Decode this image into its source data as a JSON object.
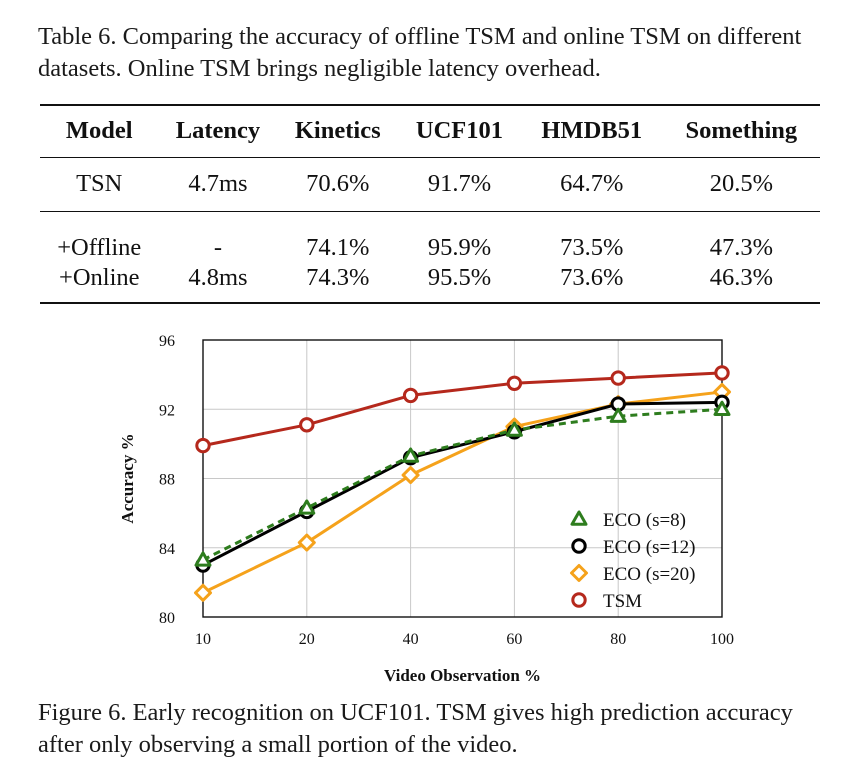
{
  "table_caption": "Table 6. Comparing the accuracy of offline TSM and online TSM on different datasets. Online TSM brings negligible latency overhead.",
  "table": {
    "columns": [
      "Model",
      "Latency",
      "Kinetics",
      "UCF101",
      "HMDB51",
      "Something"
    ],
    "rows": [
      [
        "TSN",
        "4.7ms",
        "70.6%",
        "91.7%",
        "64.7%",
        "20.5%"
      ],
      [
        "+Offline",
        "-",
        "74.1%",
        "95.9%",
        "73.5%",
        "47.3%"
      ],
      [
        "+Online",
        "4.8ms",
        "74.3%",
        "95.5%",
        "73.6%",
        "46.3%"
      ]
    ]
  },
  "chart_data": {
    "type": "line",
    "title": "",
    "xlabel": "Video Observation %",
    "ylabel": "Accuracy %",
    "x": [
      10,
      20,
      40,
      60,
      80,
      100
    ],
    "x_tick_labels": [
      "10",
      "20",
      "40",
      "60",
      "80",
      "100"
    ],
    "ylim": [
      80,
      96
    ],
    "y_ticks": [
      80,
      84,
      88,
      92,
      96
    ],
    "y_tick_labels": [
      "80",
      "84",
      "88",
      "92",
      "96"
    ],
    "grid": true,
    "legend_position": "bottom-right",
    "series": [
      {
        "name": "ECO (s=8)",
        "color": "#2e7d1e",
        "marker": "triangle",
        "line": "dashed",
        "values": [
          83.3,
          86.3,
          89.3,
          90.8,
          91.6,
          92.0
        ]
      },
      {
        "name": "ECO (s=12)",
        "color": "#000000",
        "marker": "circle",
        "line": "solid",
        "values": [
          83.0,
          86.1,
          89.2,
          90.7,
          92.3,
          92.4
        ]
      },
      {
        "name": "ECO (s=20)",
        "color": "#f5a21b",
        "marker": "diamond",
        "line": "solid",
        "values": [
          81.4,
          84.3,
          88.2,
          91.0,
          92.3,
          93.0
        ]
      },
      {
        "name": "TSM",
        "color": "#b5281c",
        "marker": "circle",
        "line": "solid",
        "values": [
          89.9,
          91.1,
          92.8,
          93.5,
          93.8,
          94.1
        ]
      }
    ]
  },
  "figure_caption": "Figure 6. Early recognition on UCF101. TSM gives high prediction accuracy after only observing a small portion of the video."
}
